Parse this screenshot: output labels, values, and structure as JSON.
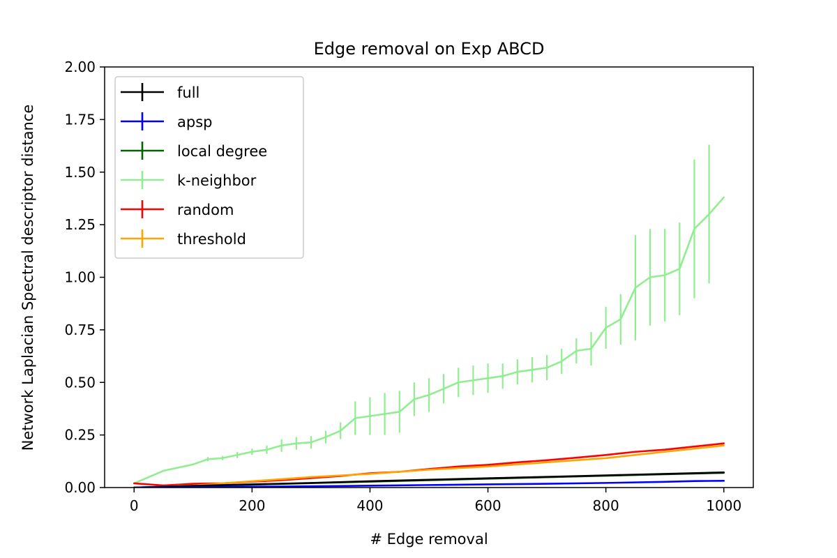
{
  "chart_data": {
    "type": "line",
    "title": "Edge removal on Exp ABCD",
    "xlabel": "# Edge removal",
    "ylabel": "Network Laplacian Spectral descriptor distance",
    "xlim": [
      -50,
      1050
    ],
    "ylim": [
      0,
      2.0
    ],
    "xticks": [
      0,
      200,
      400,
      600,
      800,
      1000
    ],
    "yticks": [
      0.0,
      0.25,
      0.5,
      0.75,
      1.0,
      1.25,
      1.5,
      1.75,
      2.0
    ],
    "xtick_labels": [
      "0",
      "200",
      "400",
      "600",
      "800",
      "1000"
    ],
    "ytick_labels": [
      "0.00",
      "0.25",
      "0.50",
      "0.75",
      "1.00",
      "1.25",
      "1.50",
      "1.75",
      "2.00"
    ],
    "grid": false,
    "legend": "upper-left",
    "series": [
      {
        "name": "full",
        "color": "#000000",
        "x": [
          0,
          100,
          200,
          300,
          400,
          500,
          600,
          700,
          800,
          900,
          1000
        ],
        "y": [
          0.0,
          0.008,
          0.015,
          0.022,
          0.03,
          0.037,
          0.044,
          0.051,
          0.058,
          0.065,
          0.072
        ]
      },
      {
        "name": "apsp",
        "color": "#0000ff",
        "x": [
          0,
          100,
          200,
          300,
          400,
          500,
          600,
          700,
          800,
          900,
          950,
          1000
        ],
        "y": [
          0.0,
          0.002,
          0.004,
          0.006,
          0.009,
          0.012,
          0.015,
          0.018,
          0.022,
          0.027,
          0.031,
          0.032
        ]
      },
      {
        "name": "local degree",
        "color": "#006400",
        "x": [
          0,
          100,
          200,
          300,
          400,
          500,
          600,
          700,
          800,
          900,
          1000
        ],
        "y": [
          0.0,
          0.007,
          0.014,
          0.021,
          0.028,
          0.035,
          0.042,
          0.049,
          0.056,
          0.063,
          0.07
        ]
      },
      {
        "name": "k-neighbor",
        "color": "#90ee90",
        "x": [
          0,
          25,
          50,
          75,
          100,
          125,
          150,
          175,
          200,
          225,
          250,
          275,
          300,
          325,
          350,
          375,
          400,
          425,
          450,
          475,
          500,
          525,
          550,
          575,
          600,
          625,
          650,
          675,
          700,
          725,
          750,
          775,
          800,
          825,
          850,
          875,
          900,
          925,
          950,
          975,
          1000
        ],
        "y": [
          0.02,
          0.05,
          0.08,
          0.095,
          0.11,
          0.135,
          0.14,
          0.155,
          0.17,
          0.18,
          0.2,
          0.21,
          0.215,
          0.24,
          0.27,
          0.33,
          0.34,
          0.35,
          0.36,
          0.42,
          0.44,
          0.47,
          0.5,
          0.51,
          0.52,
          0.53,
          0.55,
          0.56,
          0.57,
          0.6,
          0.65,
          0.66,
          0.76,
          0.8,
          0.95,
          1.0,
          1.01,
          1.04,
          1.23,
          1.3,
          1.38
        ],
        "err": [
          0.0,
          0.0,
          0.0,
          0.0,
          0.0,
          0.01,
          0.01,
          0.015,
          0.015,
          0.02,
          0.03,
          0.03,
          0.03,
          0.03,
          0.04,
          0.08,
          0.09,
          0.1,
          0.1,
          0.08,
          0.08,
          0.07,
          0.07,
          0.07,
          0.07,
          0.06,
          0.06,
          0.06,
          0.06,
          0.06,
          0.06,
          0.08,
          0.1,
          0.12,
          0.25,
          0.23,
          0.22,
          0.22,
          0.33,
          0.33,
          0.0
        ]
      },
      {
        "name": "random",
        "color": "#ff0000",
        "x": [
          0,
          50,
          100,
          150,
          200,
          250,
          300,
          350,
          400,
          450,
          500,
          550,
          600,
          650,
          700,
          750,
          800,
          850,
          900,
          950,
          1000
        ],
        "y": [
          0.02,
          0.01,
          0.018,
          0.02,
          0.028,
          0.035,
          0.045,
          0.055,
          0.068,
          0.075,
          0.088,
          0.1,
          0.108,
          0.12,
          0.13,
          0.142,
          0.155,
          0.17,
          0.18,
          0.195,
          0.21
        ]
      },
      {
        "name": "threshold",
        "color": "#ffa500",
        "x": [
          0,
          100,
          200,
          300,
          400,
          500,
          600,
          700,
          800,
          900,
          1000
        ],
        "y": [
          0.0,
          0.01,
          0.03,
          0.05,
          0.065,
          0.085,
          0.1,
          0.12,
          0.14,
          0.17,
          0.2
        ]
      }
    ]
  }
}
